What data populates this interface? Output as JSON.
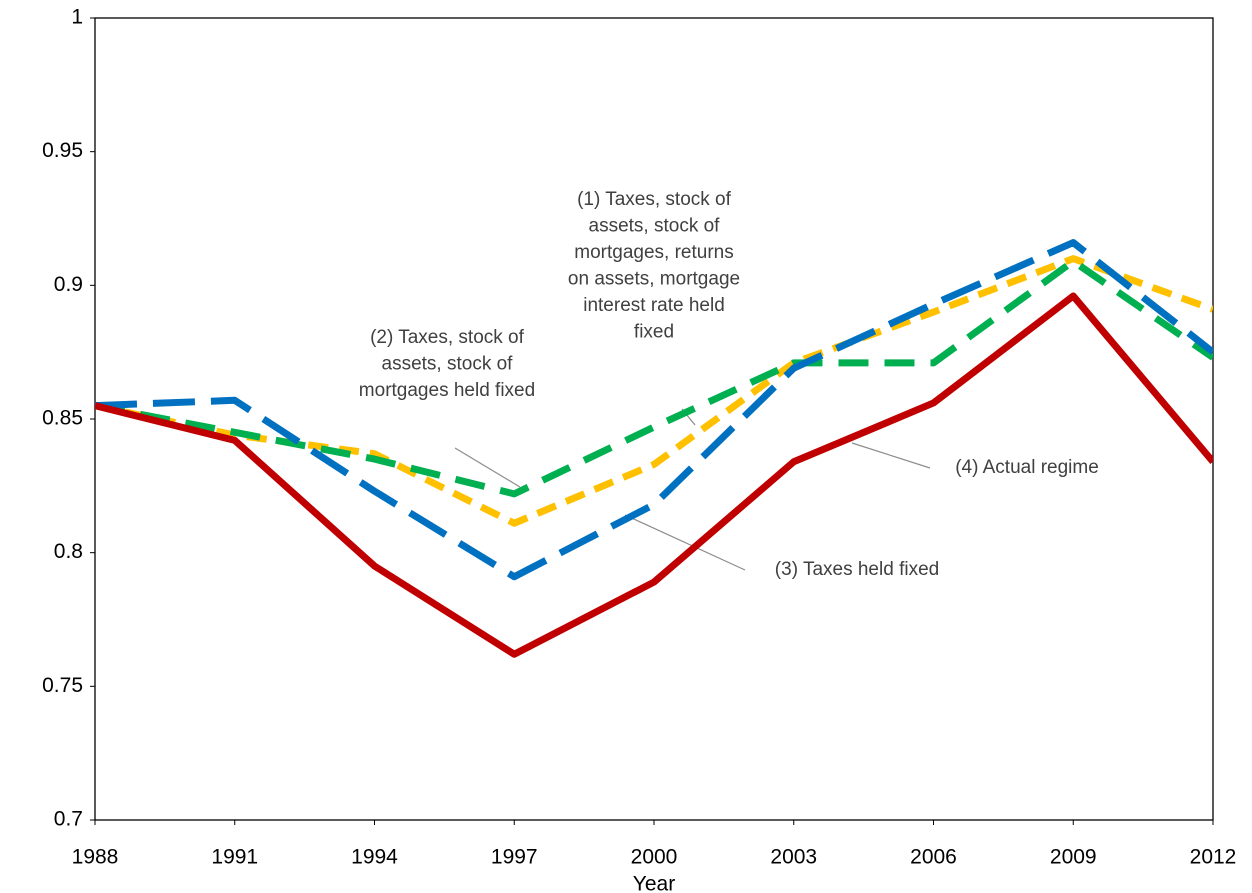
{
  "chart_data": {
    "type": "line",
    "x_label": "Year",
    "x": [
      1988,
      1991,
      1994,
      1997,
      2000,
      2003,
      2006,
      2009,
      2012
    ],
    "xlim": [
      1988,
      2012
    ],
    "xticks": [
      1988,
      1991,
      1994,
      1997,
      2000,
      2003,
      2006,
      2009,
      2012
    ],
    "ylim": [
      0.7,
      1
    ],
    "yticks": [
      0.7,
      0.75,
      0.8,
      0.85,
      0.9,
      0.95,
      1
    ],
    "grid": false,
    "series": [
      {
        "name": "(4) Actual regime",
        "color": "#c00000",
        "dash": "solid",
        "values": [
          0.855,
          0.842,
          0.795,
          0.762,
          0.789,
          0.834,
          0.856,
          0.896,
          0.834
        ]
      },
      {
        "name": "(3) Taxes held fixed",
        "color": "#0070c0",
        "dash": "long",
        "values": [
          0.855,
          0.857,
          0.823,
          0.791,
          0.818,
          0.869,
          0.893,
          0.916,
          0.875
        ]
      },
      {
        "name": "(2) Taxes, stock of assets, stock of mortgages held fixed",
        "color": "#00b050",
        "dash": "medium",
        "values": [
          0.855,
          0.845,
          0.835,
          0.822,
          0.847,
          0.871,
          0.871,
          0.909,
          0.873
        ]
      },
      {
        "name": "(1) Taxes, stock of assets, stock of mortgages, returns on assets, mortgage interest rate held fixed",
        "color": "#ffc000",
        "dash": "short",
        "values": [
          0.855,
          0.844,
          0.837,
          0.811,
          0.833,
          0.871,
          0.89,
          0.91,
          0.891
        ]
      }
    ],
    "annotations": [
      {
        "series": "(1) Taxes, stock of assets, stock of mortgages, returns on assets, mortgage interest rate held fixed",
        "lines": [
          "(1) Taxes, stock of",
          "assets, stock of",
          "mortgages, returns",
          "on assets, mortgage",
          "interest rate held",
          "fixed"
        ]
      },
      {
        "series": "(2) Taxes, stock of assets, stock of mortgages held fixed",
        "lines": [
          "(2) Taxes, stock of",
          "assets, stock of",
          "mortgages held fixed"
        ]
      },
      {
        "series": "(3) Taxes held fixed",
        "lines": [
          "(3) Taxes held fixed"
        ]
      },
      {
        "series": "(4) Actual regime",
        "lines": [
          "(4) Actual regime"
        ]
      }
    ]
  }
}
